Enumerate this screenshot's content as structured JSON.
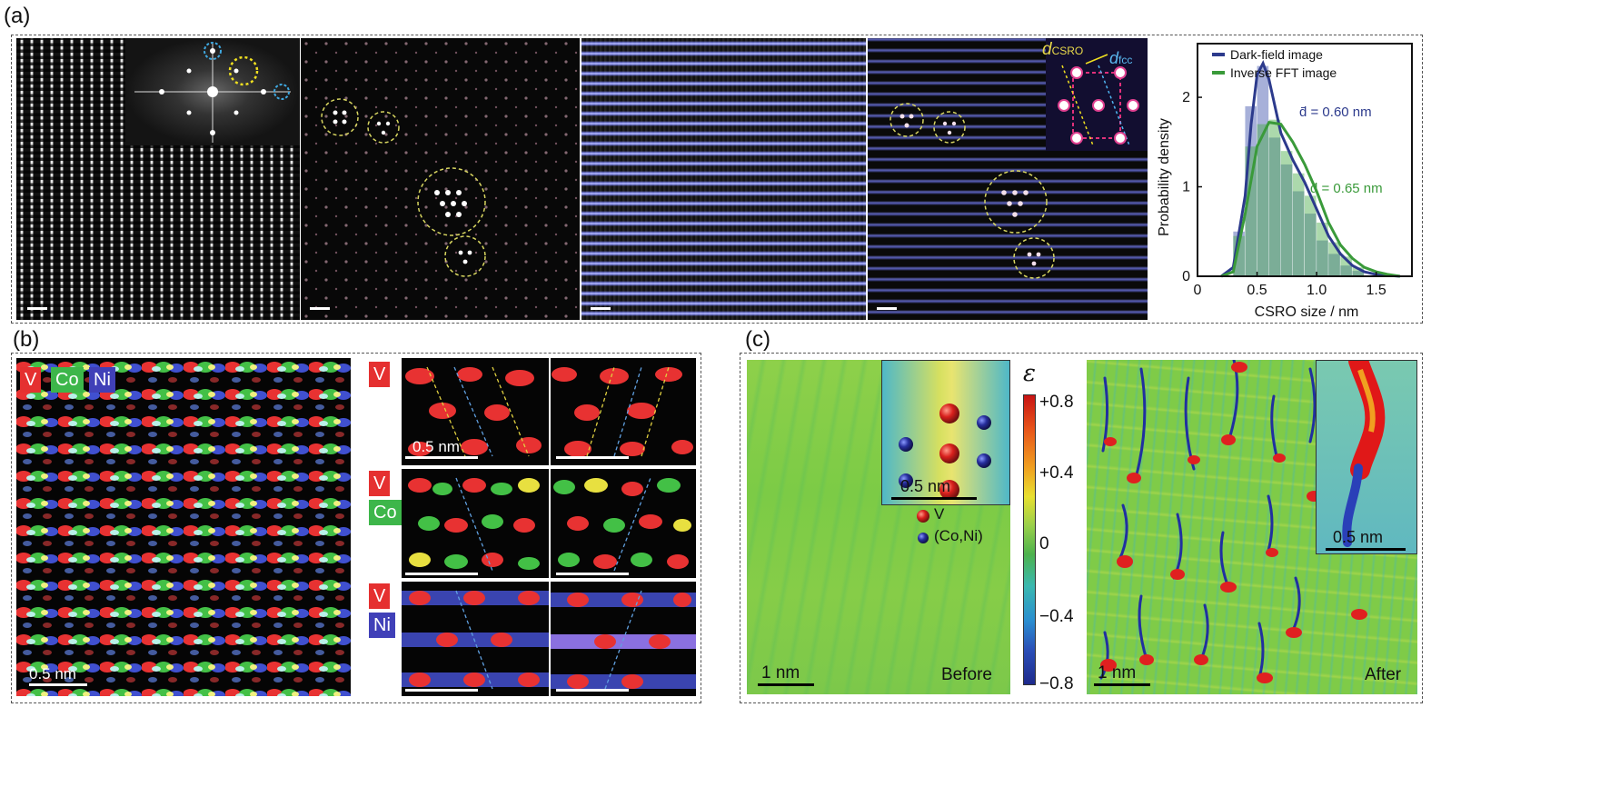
{
  "panels": {
    "a": {
      "letter": "(a)"
    },
    "b": {
      "letter": "(b)"
    },
    "c": {
      "letter": "(c)"
    }
  },
  "panel_a": {
    "inset_label_csro": "d",
    "inset_label_csro_sub": "CSRO",
    "inset_label_fcc": "d",
    "inset_label_fcc_sub": "fcc"
  },
  "chart_data": {
    "type": "bar",
    "xlabel": "CSRO size / nm",
    "ylabel": "Probability density",
    "xlim": [
      0,
      1.8
    ],
    "ylim": [
      0,
      2.6
    ],
    "xticks": [
      0,
      0.5,
      1.0,
      1.5
    ],
    "xtick_labels": [
      "0",
      "0.5",
      "1.0",
      "1.5"
    ],
    "yticks": [
      0,
      1,
      2
    ],
    "ytick_labels": [
      "0",
      "1",
      "2"
    ],
    "legend_position": "top",
    "series": [
      {
        "name": "Dark-field image",
        "color": "#2c3a8c",
        "bin_edges": [
          0.3,
          0.4,
          0.5,
          0.6,
          0.7,
          0.8,
          0.9,
          1.0,
          1.1,
          1.2,
          1.3,
          1.4
        ],
        "hist": [
          0.5,
          1.9,
          2.35,
          1.55,
          1.25,
          0.95,
          0.7,
          0.4,
          0.25,
          0.12,
          0.06
        ],
        "curve_x": [
          0.2,
          0.3,
          0.4,
          0.45,
          0.5,
          0.55,
          0.6,
          0.7,
          0.8,
          0.9,
          1.0,
          1.1,
          1.2,
          1.3,
          1.4,
          1.5,
          1.6,
          1.7
        ],
        "curve_y": [
          0.0,
          0.1,
          0.9,
          1.7,
          2.25,
          2.38,
          2.2,
          1.6,
          1.3,
          1.05,
          0.75,
          0.45,
          0.25,
          0.12,
          0.05,
          0.02,
          0.01,
          0.0
        ],
        "mean_label": "d̄ = 0.60 nm"
      },
      {
        "name": "Inverse FFT image",
        "color": "#3a9a3a",
        "bin_edges": [
          0.3,
          0.4,
          0.5,
          0.6,
          0.7,
          0.8,
          0.9,
          1.0,
          1.1,
          1.2,
          1.3,
          1.4
        ],
        "hist": [
          0.45,
          1.45,
          1.7,
          1.75,
          1.4,
          1.15,
          0.9,
          0.6,
          0.38,
          0.22,
          0.1
        ],
        "curve_x": [
          0.2,
          0.3,
          0.4,
          0.5,
          0.6,
          0.7,
          0.8,
          0.9,
          1.0,
          1.1,
          1.2,
          1.3,
          1.4,
          1.5,
          1.6,
          1.7
        ],
        "curve_y": [
          0.0,
          0.05,
          0.7,
          1.45,
          1.72,
          1.7,
          1.5,
          1.25,
          0.95,
          0.6,
          0.35,
          0.2,
          0.1,
          0.05,
          0.02,
          0.0
        ],
        "mean_label": "d̄ = 0.65 nm"
      }
    ]
  },
  "panel_b": {
    "legend": [
      "V",
      "Co",
      "Ni"
    ],
    "scale_main": "0.5 nm",
    "scale_sub": "0.5 nm",
    "row_labels": [
      [
        "V"
      ],
      [
        "V",
        "Co"
      ],
      [
        "V",
        "Ni"
      ]
    ]
  },
  "panel_c": {
    "before_scale": "1 nm",
    "before_label": "Before",
    "after_scale": "1 nm",
    "after_label": "After",
    "inset_scale_before": "0.5 nm",
    "inset_scale_after": "0.5 nm",
    "legend_v": "V",
    "legend_coni": "(Co,Ni)",
    "colorbar_symbol": "ε",
    "colorbar_ticks": [
      "+0.8",
      "+0.4",
      "0",
      "−0.4",
      "−0.8"
    ],
    "colors": {
      "pos": "#d7191c",
      "mid": "#4db24d",
      "neg": "#2a3b9c"
    }
  }
}
